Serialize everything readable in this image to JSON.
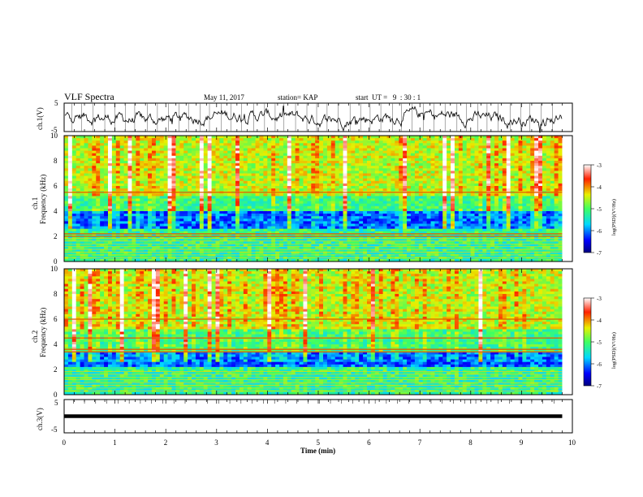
{
  "header": {
    "title": "VLF Spectra",
    "date": "May 11, 2017",
    "station": "station= KAP",
    "start": "start  UT =   9  : 30 : 1"
  },
  "chart_data": [
    {
      "type": "line",
      "panel": "waveform-ch1",
      "ylabel": "ch.1(V)",
      "ylim": [
        -5,
        5
      ],
      "yticks": [
        "5",
        "-5"
      ],
      "xlim": [
        0,
        10
      ],
      "data_end_min": 9.8
    },
    {
      "type": "heatmap",
      "panel": "spectrogram-ch1",
      "ylabel": "ch.1\nFrequency (kHz)",
      "ylim": [
        0,
        10
      ],
      "yticks": [
        "0",
        "2",
        "4",
        "6",
        "8",
        "10"
      ],
      "xlim": [
        0,
        10
      ],
      "colorbar": {
        "label": "log(PSD)(V²/Hz)",
        "range": [
          -7,
          -3
        ],
        "ticks": [
          "-3",
          "-4",
          "-5",
          "-6",
          "-7"
        ]
      },
      "notable_bands_khz": [
        2.0,
        2.2,
        5.5
      ]
    },
    {
      "type": "heatmap",
      "panel": "spectrogram-ch2",
      "ylabel": "ch.2\nFrequency (kHz)",
      "ylim": [
        0,
        10
      ],
      "yticks": [
        "0",
        "2",
        "4",
        "6",
        "8",
        "10"
      ],
      "xlim": [
        0,
        10
      ],
      "colorbar": {
        "label": "log(PSD)(V²/Hz)",
        "range": [
          -7,
          -3
        ],
        "ticks": [
          "-3",
          "-4",
          "-5",
          "-6",
          "-7"
        ]
      },
      "notable_bands_khz": [
        3.4,
        3.6,
        4.5,
        6.0
      ]
    },
    {
      "type": "line",
      "panel": "waveform-ch3",
      "ylabel": "ch.3(V)",
      "ylim": [
        -5,
        5
      ],
      "yticks": [
        "5",
        "-5"
      ],
      "xlim": [
        0,
        10
      ],
      "value": 0,
      "data_end_min": 9.8
    }
  ],
  "xaxis": {
    "label": "Time  (min)",
    "ticks": [
      "0",
      "1",
      "2",
      "3",
      "4",
      "5",
      "6",
      "7",
      "8",
      "9",
      "10"
    ]
  }
}
